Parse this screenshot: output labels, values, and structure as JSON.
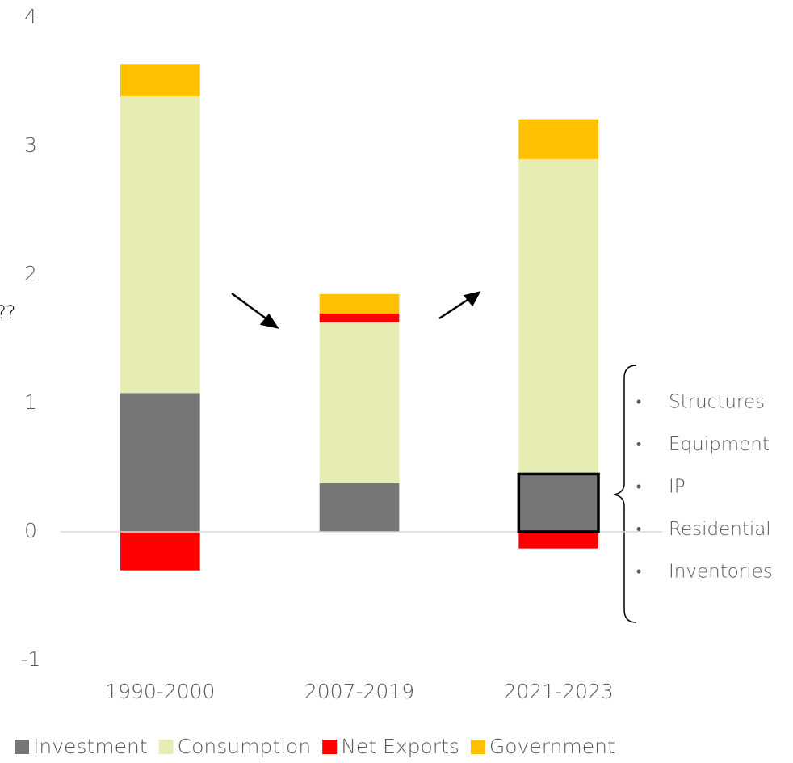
{
  "chart_data": {
    "type": "stacked_bar",
    "categories": [
      "1990-2000",
      "2007-2019",
      "2021-2023"
    ],
    "series": [
      {
        "name": "Investment",
        "color": "#767676",
        "values": [
          1.08,
          0.38,
          0.45
        ]
      },
      {
        "name": "Consumption",
        "color": "#e6ecb4",
        "values": [
          2.31,
          1.25,
          2.45
        ]
      },
      {
        "name": "Net Exports",
        "color": "#ff0000",
        "values": [
          -0.3,
          0.07,
          -0.13
        ]
      },
      {
        "name": "Government",
        "color": "#ffc000",
        "values": [
          0.25,
          0.15,
          0.31
        ]
      }
    ],
    "ylim": [
      -1,
      4
    ],
    "yticks": [
      -1,
      0,
      1,
      2,
      3,
      4
    ],
    "grid": false,
    "legend": "bottom",
    "annotation": "??",
    "annotations": [
      "Structures",
      "Equipment",
      "IP",
      "Residential",
      "Inventories"
    ]
  }
}
